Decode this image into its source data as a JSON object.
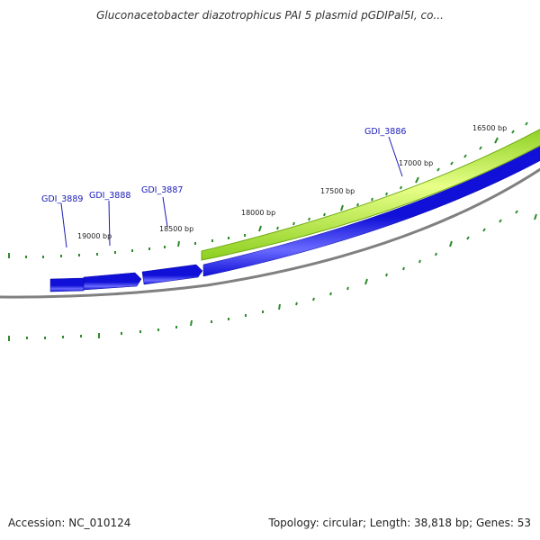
{
  "title": "Gluconacetobacter diazotrophicus PAI 5 plasmid pGDIPal5I, co...",
  "footer": {
    "accession": "Accession: NC_010124",
    "summary": "Topology: circular; Length: 38,818 bp; Genes: 53"
  },
  "colors": {
    "backbone": "#808080",
    "gene_forward": "#1010d8",
    "gene_forward_highlight": "#6a6aff",
    "gc_band": "#8ccf20",
    "gc_band_highlight": "#e8ff88",
    "tick": "#2e8b2e",
    "label": "#1a1ab8"
  },
  "tick_labels": [
    "16500 bp",
    "17000 bp",
    "17500 bp",
    "18000 bp",
    "18500 bp",
    "19000 bp"
  ],
  "genes": [
    {
      "name": "GDI_3886",
      "label": "GDI_3886"
    },
    {
      "name": "GDI_3887",
      "label": "GDI_3887"
    },
    {
      "name": "GDI_3888",
      "label": "GDI_3888"
    },
    {
      "name": "GDI_3889",
      "label": "GDI_3889"
    }
  ]
}
